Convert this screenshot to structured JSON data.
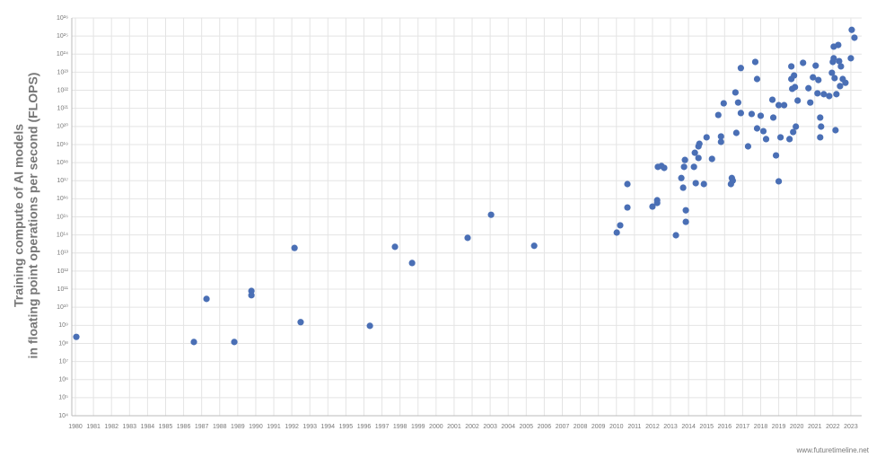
{
  "chart_data": {
    "type": "scatter",
    "ylabel": [
      "Training compute of AI models",
      "in floating point operations per second (FLOPS)"
    ],
    "watermark": "www.futuretimeline.net",
    "color": "#4a6fb5",
    "log_y": true,
    "grid": true,
    "xlim": [
      1979.8,
      2023.6
    ],
    "ylim": [
      10000.0,
      1e+26
    ],
    "xticks": [
      1980,
      1981,
      1982,
      1983,
      1984,
      1985,
      1986,
      1987,
      1988,
      1989,
      1990,
      1991,
      1992,
      1993,
      1994,
      1995,
      1996,
      1997,
      1998,
      1999,
      2000,
      2001,
      2002,
      2003,
      2004,
      2005,
      2006,
      2007,
      2008,
      2009,
      2010,
      2011,
      2012,
      2013,
      2014,
      2015,
      2016,
      2017,
      2018,
      2019,
      2020,
      2021,
      2022,
      2023
    ],
    "yticks": [
      {
        "value": 10000.0,
        "label": "10⁴"
      },
      {
        "value": 100000.0,
        "label": "10⁵"
      },
      {
        "value": 1000000.0,
        "label": "10⁶"
      },
      {
        "value": 10000000.0,
        "label": "10⁷"
      },
      {
        "value": 100000000.0,
        "label": "10⁸"
      },
      {
        "value": 1000000000.0,
        "label": "10⁹"
      },
      {
        "value": 10000000000.0,
        "label": "10¹⁰"
      },
      {
        "value": 100000000000.0,
        "label": "10¹¹"
      },
      {
        "value": 1000000000000.0,
        "label": "10¹²"
      },
      {
        "value": 10000000000000.0,
        "label": "10¹³"
      },
      {
        "value": 100000000000000.0,
        "label": "10¹⁴"
      },
      {
        "value": 1000000000000000.0,
        "label": "10¹⁵"
      },
      {
        "value": 1e+16,
        "label": "10¹⁶"
      },
      {
        "value": 1e+17,
        "label": "10¹⁷"
      },
      {
        "value": 1e+18,
        "label": "10¹⁸"
      },
      {
        "value": 1e+19,
        "label": "10¹⁹"
      },
      {
        "value": 1e+20,
        "label": "10²⁰"
      },
      {
        "value": 1e+21,
        "label": "10²¹"
      },
      {
        "value": 1e+22,
        "label": "10²²"
      },
      {
        "value": 1e+23,
        "label": "10²³"
      },
      {
        "value": 1e+24,
        "label": "10²⁴"
      },
      {
        "value": 1e+25,
        "label": "10²⁵"
      },
      {
        "value": 1e+26,
        "label": "10²⁶"
      }
    ],
    "x": [
      1980.05,
      1986.57,
      1987.27,
      1988.81,
      1989.76,
      1989.76,
      1992.15,
      1992.49,
      1996.33,
      1997.72,
      1998.67,
      2001.75,
      2003.05,
      2005.44,
      2010.02,
      2010.21,
      2010.61,
      2010.61,
      2012.0,
      2012.26,
      2012.26,
      2012.3,
      2012.5,
      2012.65,
      2013.3,
      2013.6,
      2013.7,
      2013.75,
      2013.8,
      2013.85,
      2013.85,
      2014.3,
      2014.35,
      2014.4,
      2014.55,
      2014.55,
      2014.6,
      2014.85,
      2015.0,
      2015.3,
      2015.65,
      2015.8,
      2015.8,
      2015.95,
      2016.35,
      2016.4,
      2016.45,
      2016.6,
      2016.65,
      2016.75,
      2016.9,
      2016.9,
      2017.3,
      2017.5,
      2017.7,
      2017.8,
      2017.8,
      2018.0,
      2018.15,
      2018.3,
      2018.65,
      2018.7,
      2018.85,
      2019.0,
      2019.0,
      2019.1,
      2019.3,
      2019.6,
      2019.7,
      2019.7,
      2019.75,
      2019.8,
      2019.85,
      2019.9,
      2019.95,
      2020.05,
      2020.35,
      2020.65,
      2020.75,
      2020.9,
      2021.05,
      2021.15,
      2021.2,
      2021.3,
      2021.3,
      2021.35,
      2021.5,
      2021.8,
      2021.95,
      2022.0,
      2022.05,
      2022.05,
      2022.1,
      2022.15,
      2022.2,
      2022.3,
      2022.35,
      2022.4,
      2022.45,
      2022.55,
      2022.7,
      2023.0,
      2023.05,
      2023.2
    ],
    "values": [
      230000000.0,
      120000000.0,
      29000000000.0,
      120000000.0,
      80000000000.0,
      46000000000.0,
      19000000000000.0,
      1500000000.0,
      940000000.0,
      22000000000000.0,
      2800000000000.0,
      69000000000000.0,
      1300000000000000.0,
      25000000000000.0,
      135000000000000.0,
      340000000000000.0,
      3300000000000000.0,
      6.5e+16,
      3700000000000000.0,
      8300000000000000.0,
      5900000000000000.0,
      5.8e+17,
      6.5e+17,
      5.1e+17,
      96000000000000.0,
      1.4e+17,
      4.1e+16,
      5.8e+17,
      1.4e+18,
      2300000000000000.0,
      530000000000000.0,
      5.8e+17,
      3.5e+18,
      7.3e+16,
      1.8e+18,
      7.9e+18,
      1.1e+19,
      6.5e+16,
      2.5e+19,
      1.6e+18,
      4.3e+20,
      2.8e+19,
      1.4e+19,
      1.9e+21,
      6.5e+16,
      1.4e+17,
      1e+17,
      7.6e+21,
      4.4e+19,
      2.1e+21,
      1.7e+23,
      5.5e+20,
      7.9e+18,
      4.9e+20,
      3.7e+23,
      4.2e+22,
      7.8e+19,
      3.9e+20,
      5.5e+19,
      2e+19,
      3e+21,
      3.1e+20,
      2.5e+18,
      1.5e+21,
      9.2e+16,
      2.5e+19,
      1.5e+21,
      2e+19,
      2.1e+23,
      4.2e+22,
      1.2e+22,
      4.9e+19,
      6.6e+22,
      1.5e+22,
      9.8e+19,
      2.7e+21,
      3.3e+23,
      1.3e+22,
      2.1e+21,
      5.2e+22,
      2.3e+23,
      6.8e+21,
      3.7e+22,
      3.1e+20,
      2.5e+19,
      9.8e+19,
      6.1e+21,
      4.8e+21,
      9.3e+22,
      3.7e+23,
      2.6e+24,
      5.9e+23,
      4.7e+22,
      6.2e+19,
      6.1e+21,
      3.2e+24,
      4.1e+23,
      1.7e+22,
      2.1e+23,
      4.2e+22,
      2.6e+22,
      5.9e+23,
      2.2e+25,
      8.1e+24
    ]
  }
}
